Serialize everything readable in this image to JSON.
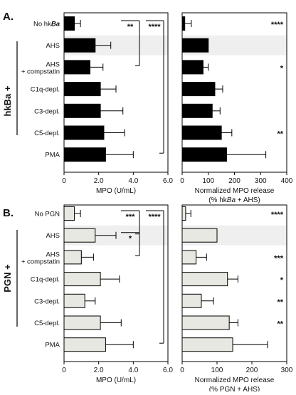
{
  "chart_data": [
    {
      "panel": "A.",
      "group_label": "hkBa +",
      "charts": [
        {
          "type": "bar",
          "fill": "#000000",
          "categories": [
            "No hkBa",
            "AHS",
            "AHS\n+ compstatin",
            "C1q-depl.",
            "C3-depl.",
            "C5-depl.",
            "PMA"
          ],
          "values": [
            0.6,
            1.8,
            1.5,
            2.1,
            2.1,
            2.3,
            2.4
          ],
          "errors": [
            0.35,
            0.9,
            0.75,
            0.9,
            1.3,
            1.2,
            1.6
          ],
          "xlim": [
            0,
            6
          ],
          "xticks": [
            0,
            2,
            4,
            6
          ],
          "xtick_labels": [
            "0",
            "2.0",
            "4.0",
            "6.0"
          ],
          "xlabel": "MPO (U/mL)",
          "highlight_index": 1,
          "significance": [
            {
              "label": "**",
              "from": 0,
              "to": 2
            },
            {
              "label": "****",
              "from": 0,
              "to": 6
            }
          ]
        },
        {
          "type": "bar",
          "fill": "#000000",
          "values": [
            10,
            100,
            80,
            125,
            115,
            150,
            170
          ],
          "errors": [
            25,
            0,
            20,
            30,
            30,
            40,
            150
          ],
          "xlim": [
            0,
            400
          ],
          "xticks": [
            0,
            100,
            200,
            300,
            400
          ],
          "xtick_labels": [
            "0",
            "100",
            "200",
            "300",
            "400"
          ],
          "xlabel": "Normalized MPO release",
          "xlabel2": "(% hkBa + AHS)",
          "highlight_index": 1,
          "stars": [
            "****",
            "",
            "*",
            "",
            "",
            "**",
            ""
          ]
        }
      ]
    },
    {
      "panel": "B.",
      "group_label": "PGN +",
      "charts": [
        {
          "type": "bar",
          "fill": "#e8e8e2",
          "categories": [
            "No PGN",
            "AHS",
            "AHS\n+ compstatin",
            "C1q-depl.",
            "C3-depl.",
            "C5-depl.",
            "PMA"
          ],
          "values": [
            0.6,
            1.8,
            1.0,
            2.1,
            1.2,
            2.1,
            2.4
          ],
          "errors": [
            0.35,
            1.2,
            0.7,
            1.1,
            0.6,
            1.2,
            1.6
          ],
          "xlim": [
            0,
            6
          ],
          "xticks": [
            0,
            2,
            4,
            6
          ],
          "xtick_labels": [
            "0",
            "2.0",
            "4.0",
            "6.0"
          ],
          "xlabel": "MPO (U/mL)",
          "highlight_index": 1,
          "significance": [
            {
              "label": "***",
              "from": 0,
              "to": 1
            },
            {
              "label": "****",
              "from": 0,
              "to": 6
            },
            {
              "label": "*",
              "from": 1,
              "to": 2
            }
          ]
        },
        {
          "type": "bar",
          "fill": "#e8e8e2",
          "values": [
            10,
            100,
            40,
            130,
            55,
            135,
            145
          ],
          "errors": [
            15,
            0,
            30,
            30,
            35,
            25,
            100
          ],
          "xlim": [
            0,
            300
          ],
          "xticks": [
            0,
            100,
            200,
            300
          ],
          "xtick_labels": [
            "0",
            "100",
            "200",
            "300"
          ],
          "xlabel": "Normalized MPO release",
          "xlabel2": "(% PGN + AHS)",
          "highlight_index": 1,
          "stars": [
            "****",
            "",
            "***",
            "*",
            "**",
            "**",
            ""
          ]
        }
      ]
    }
  ]
}
